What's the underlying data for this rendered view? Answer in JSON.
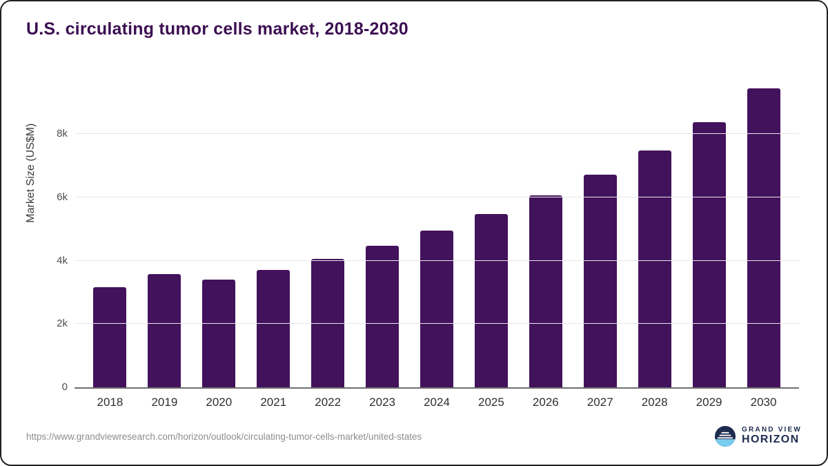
{
  "title": "U.S. circulating tumor cells market, 2018-2030",
  "chart_data": {
    "type": "bar",
    "title": "U.S. circulating tumor cells market, 2018-2030",
    "categories": [
      "2018",
      "2019",
      "2020",
      "2021",
      "2022",
      "2023",
      "2024",
      "2025",
      "2026",
      "2027",
      "2028",
      "2029",
      "2030"
    ],
    "values": [
      3170,
      3570,
      3400,
      3710,
      4060,
      4480,
      4940,
      5470,
      6070,
      6720,
      7470,
      8380,
      9450
    ],
    "xlabel": "",
    "ylabel": "Market Size (US$M)",
    "ylim": [
      0,
      9680
    ],
    "yticks": [
      {
        "value": 0,
        "label": "0"
      },
      {
        "value": 2000,
        "label": "2k"
      },
      {
        "value": 4000,
        "label": "4k"
      },
      {
        "value": 6000,
        "label": "6k"
      },
      {
        "value": 8000,
        "label": "8k"
      }
    ],
    "grid": true,
    "legend": "none",
    "bar_color": "#43125c"
  },
  "footer": {
    "source_url": "https://www.grandviewresearch.com/horizon/outlook/circulating-tumor-cells-market/united-states",
    "logo": {
      "line1": "GRAND VIEW",
      "line2": "HORIZON"
    }
  },
  "colors": {
    "title": "#3c0f52",
    "bar": "#43125c",
    "axis": "#6e6e6e",
    "grid": "#e7e7e7",
    "logo_navy": "#1d2b4f",
    "logo_blue": "#79cdee"
  }
}
